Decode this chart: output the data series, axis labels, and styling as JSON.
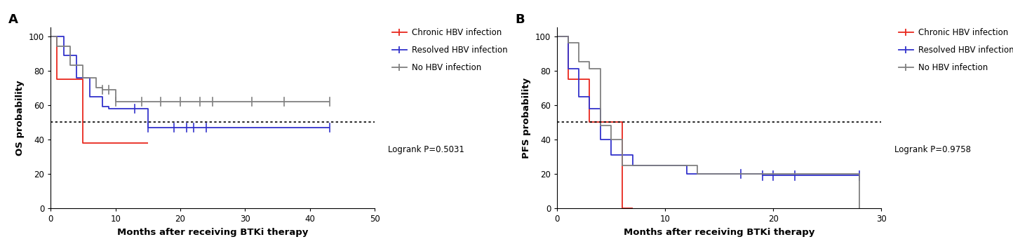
{
  "panel_A": {
    "title": "A",
    "ylabel": "OS probability",
    "xlabel": "Months after receiving BTKi therapy",
    "xlim": [
      0,
      50
    ],
    "ylim": [
      0,
      105
    ],
    "yticks": [
      0,
      20,
      40,
      60,
      80,
      100
    ],
    "xticks": [
      0,
      10,
      20,
      30,
      40,
      50
    ],
    "logrank_text": "Logrank P=0.5031",
    "dotted_y": 50,
    "curves": {
      "chronic": {
        "color": "#e8281e",
        "x": [
          0,
          1,
          5,
          15
        ],
        "y": [
          100,
          75,
          38,
          38
        ],
        "censors_x": [],
        "censors_y": []
      },
      "resolved": {
        "color": "#3333cc",
        "x": [
          0,
          2,
          4,
          6,
          8,
          9,
          14,
          15,
          19,
          43
        ],
        "y": [
          100,
          89,
          76,
          65,
          59,
          58,
          58,
          47,
          47,
          47
        ],
        "censors_x": [
          13,
          15,
          19,
          21,
          22,
          24,
          43
        ],
        "censors_y": [
          58,
          47,
          47,
          47,
          47,
          47,
          47
        ]
      },
      "no_hbv": {
        "color": "#808080",
        "x": [
          0,
          1,
          3,
          5,
          7,
          8,
          10,
          12,
          43
        ],
        "y": [
          100,
          94,
          83,
          76,
          70,
          69,
          62,
          62,
          62
        ],
        "censors_x": [
          8,
          9,
          10,
          14,
          17,
          20,
          23,
          25,
          31,
          36,
          43
        ],
        "censors_y": [
          69,
          69,
          62,
          62,
          62,
          62,
          62,
          62,
          62,
          62,
          62
        ]
      }
    }
  },
  "panel_B": {
    "title": "B",
    "ylabel": "PFS probability",
    "xlabel": "Months after receiving BTKi therapy",
    "xlim": [
      0,
      30
    ],
    "ylim": [
      0,
      105
    ],
    "yticks": [
      0,
      20,
      40,
      60,
      80,
      100
    ],
    "xticks": [
      0,
      10,
      20,
      30
    ],
    "logrank_text": "Logrank P=0.9758",
    "dotted_y": 50,
    "curves": {
      "chronic": {
        "color": "#e8281e",
        "x": [
          0,
          1,
          3,
          6,
          7
        ],
        "y": [
          100,
          75,
          50,
          0,
          0
        ],
        "censors_x": [],
        "censors_y": []
      },
      "resolved": {
        "color": "#3333cc",
        "x": [
          0,
          1,
          2,
          3,
          4,
          5,
          7,
          12,
          17,
          19,
          28
        ],
        "y": [
          100,
          81,
          65,
          58,
          40,
          31,
          25,
          20,
          20,
          19,
          19
        ],
        "censors_x": [
          17,
          19,
          20,
          22,
          28
        ],
        "censors_y": [
          20,
          19,
          19,
          19,
          19
        ]
      },
      "no_hbv": {
        "color": "#808080",
        "x": [
          0,
          1,
          2,
          3,
          4,
          5,
          6,
          12,
          13,
          25,
          28
        ],
        "y": [
          100,
          96,
          85,
          81,
          48,
          40,
          25,
          25,
          20,
          20,
          0
        ],
        "censors_x": [],
        "censors_y": []
      }
    }
  },
  "colors": {
    "chronic": "#e8281e",
    "resolved": "#3333cc",
    "no_hbv": "#808080"
  },
  "legend_labels": [
    "Chronic HBV infection",
    "Resolved HBV infection",
    "No HBV infection"
  ],
  "bg_color": "#ffffff",
  "font_family": "Arial",
  "axis_fontsize": 8.5,
  "label_fontsize": 9.5,
  "title_fontsize": 13
}
